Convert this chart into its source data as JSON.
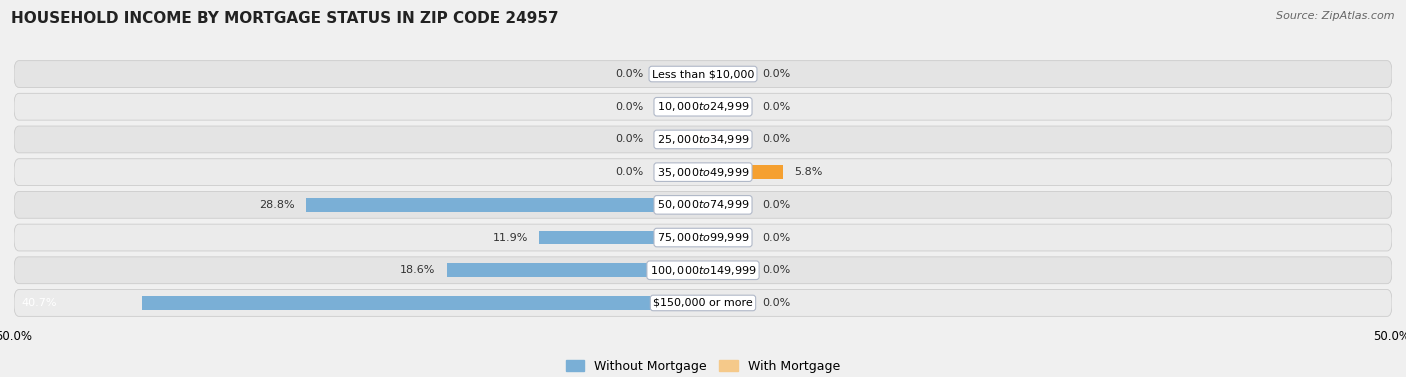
{
  "title": "HOUSEHOLD INCOME BY MORTGAGE STATUS IN ZIP CODE 24957",
  "source": "Source: ZipAtlas.com",
  "categories": [
    "Less than $10,000",
    "$10,000 to $24,999",
    "$25,000 to $34,999",
    "$35,000 to $49,999",
    "$50,000 to $74,999",
    "$75,000 to $99,999",
    "$100,000 to $149,999",
    "$150,000 or more"
  ],
  "without_mortgage": [
    0.0,
    0.0,
    0.0,
    0.0,
    28.8,
    11.9,
    18.6,
    40.7
  ],
  "with_mortgage": [
    0.0,
    0.0,
    0.0,
    5.8,
    0.0,
    0.0,
    0.0,
    0.0
  ],
  "color_without": "#7aafd6",
  "color_with_light": "#f5c98a",
  "color_with_bright": "#f5a030",
  "xlim": 50.0,
  "bg_fig_color": "#f0f0f0",
  "bg_row_even": "#e4e4e4",
  "bg_row_odd": "#ebebeb",
  "label_fontsize": 8.0,
  "title_fontsize": 11,
  "source_fontsize": 8,
  "legend_fontsize": 9,
  "stub_size": 3.5
}
